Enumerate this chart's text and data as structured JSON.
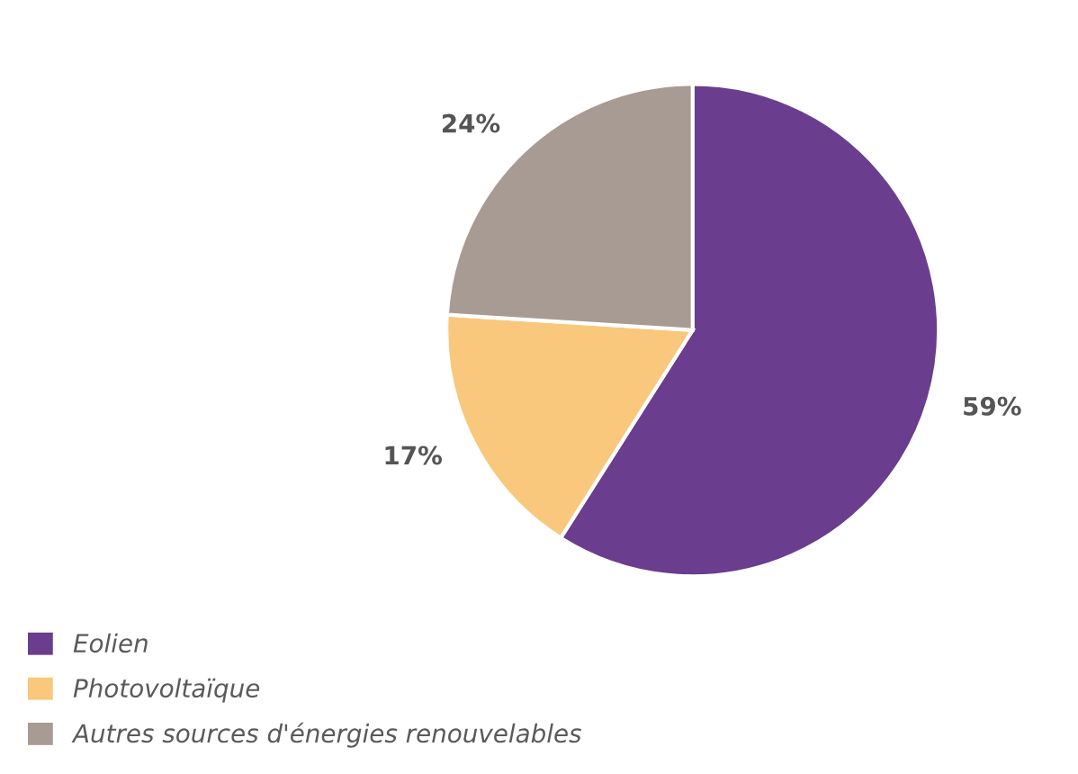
{
  "chart_data": {
    "type": "pie",
    "categories": [
      "Eolien",
      "Photovoltaïque",
      "Autres sources d'énergies renouvelables"
    ],
    "values": [
      59,
      17,
      24
    ],
    "colors": [
      "#6a3d8f",
      "#f9c87c",
      "#a89b93"
    ],
    "value_labels": [
      "59%",
      "17%",
      "24%"
    ],
    "legend": "bottom left"
  }
}
